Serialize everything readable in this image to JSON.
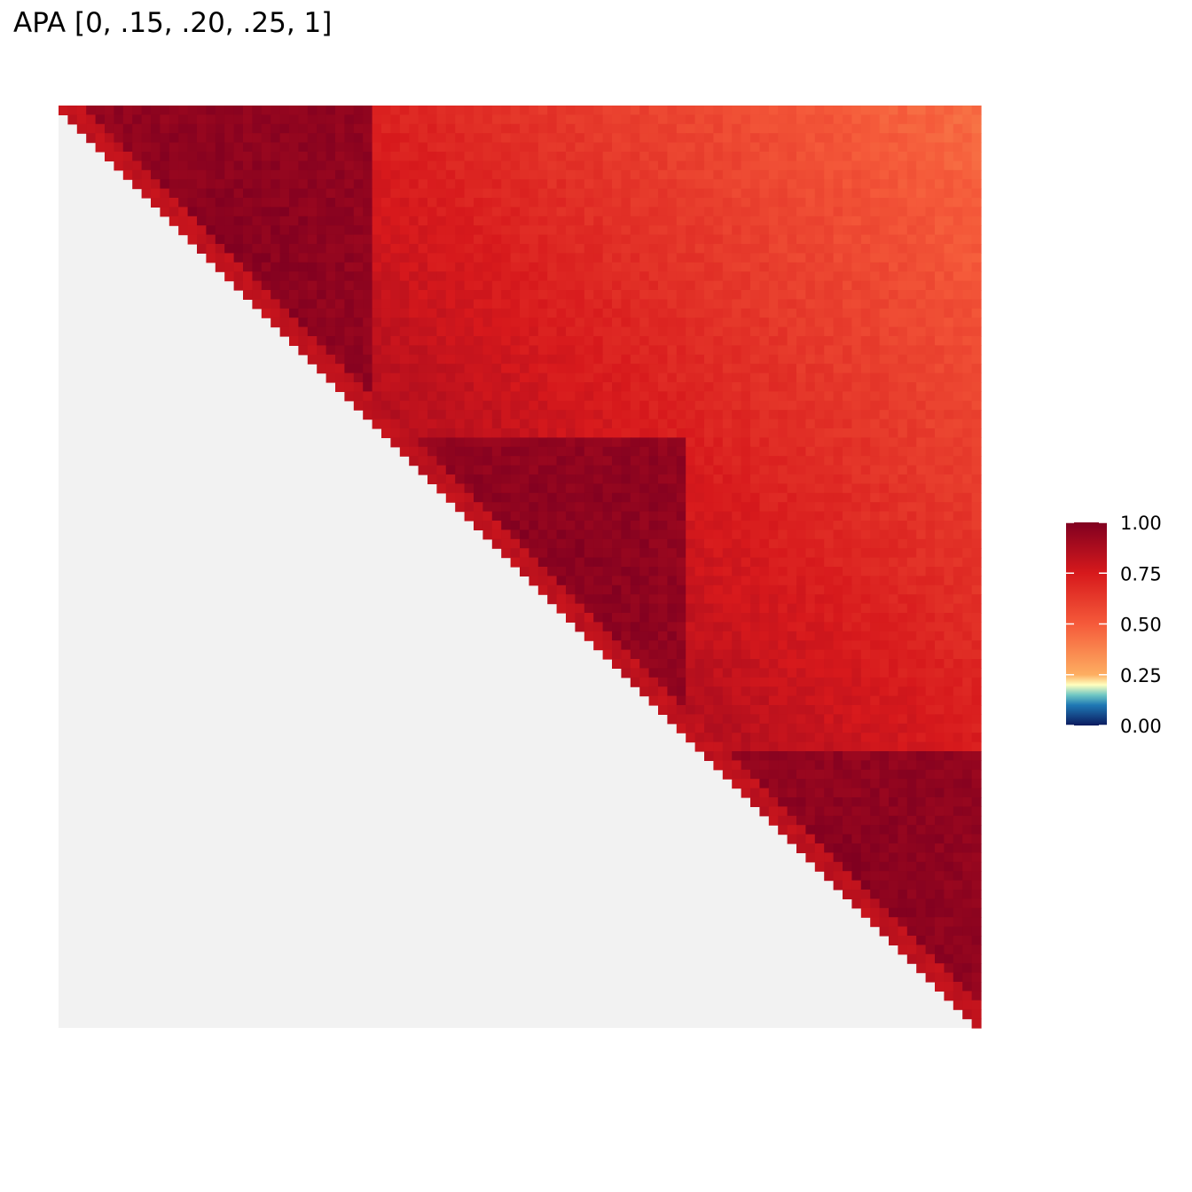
{
  "title": "APA [0, .15, .20, .25, 1]",
  "chart_data": {
    "type": "heatmap",
    "title": "APA [0, .15, .20, .25, 1]",
    "xlabel": "",
    "ylabel": "",
    "grid": false,
    "matrix_shape": "upper-triangular",
    "n_bins": 100,
    "empty_color": "#f2f2f2",
    "domains": [
      {
        "start": 0,
        "end": 33
      },
      {
        "start": 36,
        "end": 67
      },
      {
        "start": 70,
        "end": 100
      }
    ],
    "value_range": [
      0,
      1
    ],
    "color_scale": {
      "stops": [
        {
          "value": 0.0,
          "color": "#0b1a5e"
        },
        {
          "value": 0.1,
          "color": "#1f78b4"
        },
        {
          "value": 0.15,
          "color": "#6fc7c4"
        },
        {
          "value": 0.2,
          "color": "#ffffbf"
        },
        {
          "value": 0.25,
          "color": "#fdae61"
        },
        {
          "value": 0.5,
          "color": "#f55a3a"
        },
        {
          "value": 0.75,
          "color": "#d7191c"
        },
        {
          "value": 1.0,
          "color": "#800020"
        }
      ]
    },
    "legend": {
      "position": "right",
      "ticks": [
        {
          "value": 0.0,
          "label": "0.00"
        },
        {
          "value": 0.25,
          "label": "0.25"
        },
        {
          "value": 0.5,
          "label": "0.50"
        },
        {
          "value": 0.75,
          "label": "0.75"
        },
        {
          "value": 1.0,
          "label": "1.00"
        }
      ]
    }
  }
}
